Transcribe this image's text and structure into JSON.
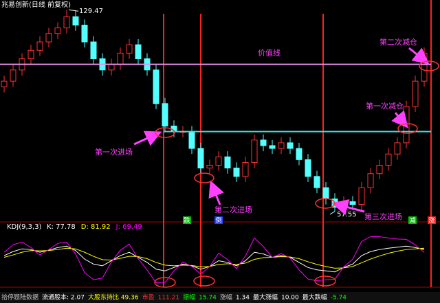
{
  "header": {
    "title": "兆易创新(日线 前复权)"
  },
  "chart_data": [
    {
      "type": "candlestick",
      "open": [
        102,
        104,
        108,
        112,
        115,
        118,
        121,
        123,
        127,
        124,
        118,
        112,
        108,
        110,
        114,
        117,
        112,
        108,
        96,
        88,
        86,
        86,
        80,
        73,
        74,
        77,
        73,
        70,
        75,
        83,
        81,
        80,
        82,
        80,
        76,
        70,
        66,
        62,
        59,
        61,
        60,
        66,
        71,
        74,
        78,
        82,
        95,
        104
      ],
      "high": [
        106,
        110,
        114,
        117,
        120,
        123,
        125,
        129.47,
        129,
        126,
        120,
        114,
        112,
        116,
        119,
        119,
        114,
        110,
        98,
        90,
        88,
        88,
        82,
        76,
        79,
        79,
        75,
        77,
        85,
        85,
        83,
        84,
        84,
        82,
        78,
        72,
        68,
        64,
        63,
        63,
        68,
        73,
        76,
        80,
        84,
        97,
        106,
        116
      ],
      "low": [
        100,
        102,
        106,
        110,
        113,
        116,
        119,
        121,
        122,
        116,
        110,
        106,
        106,
        108,
        112,
        110,
        106,
        94,
        86,
        84,
        84,
        78,
        71,
        71,
        72,
        71,
        68,
        68,
        73,
        79,
        78,
        78,
        78,
        74,
        68,
        64,
        60,
        57.55,
        58,
        58,
        58,
        64,
        69,
        72,
        76,
        80,
        93,
        102
      ],
      "close": [
        104,
        108,
        112,
        115,
        118,
        121,
        123,
        127,
        124,
        118,
        112,
        108,
        110,
        114,
        117,
        112,
        108,
        96,
        88,
        86,
        86,
        80,
        73,
        74,
        77,
        73,
        70,
        75,
        83,
        81,
        80,
        82,
        80,
        76,
        70,
        66,
        62,
        59,
        61,
        60,
        66,
        71,
        74,
        78,
        82,
        95,
        104,
        114
      ],
      "up_color": "#ff3232",
      "down_color": "#54ffff",
      "ylim": [
        55,
        131
      ],
      "max_label": 129.47,
      "min_label": 57.55,
      "reference_lines": [
        {
          "value": 110,
          "color": "#e890e8",
          "label": "价值线"
        },
        {
          "value": 86,
          "color": "#40e0e0"
        }
      ],
      "annotations": [
        "第一次进场",
        "第二次进场",
        "第三次进场",
        "第一次减仓",
        "第二次减仓"
      ],
      "tags": [
        "跌",
        "倒",
        "减",
        "涨"
      ]
    },
    {
      "type": "line",
      "title": "KDJ(9,3,3)",
      "ylim": [
        -25,
        125
      ],
      "series": [
        {
          "name": "K: 77.78",
          "color": "#ffffff",
          "values": [
            60,
            72,
            80,
            78,
            70,
            76,
            84,
            88,
            75,
            50,
            35,
            30,
            45,
            60,
            70,
            55,
            40,
            20,
            15,
            25,
            35,
            30,
            20,
            28,
            45,
            40,
            30,
            45,
            70,
            65,
            55,
            60,
            55,
            40,
            25,
            18,
            15,
            12,
            25,
            35,
            60,
            72,
            78,
            82,
            85,
            88,
            84,
            77.78
          ]
        },
        {
          "name": "D: 81.92",
          "color": "#ffff00",
          "values": [
            55,
            62,
            70,
            75,
            74,
            75,
            78,
            82,
            80,
            70,
            58,
            48,
            47,
            52,
            58,
            57,
            51,
            40,
            32,
            30,
            32,
            31,
            27,
            28,
            34,
            36,
            34,
            38,
            49,
            54,
            55,
            57,
            56,
            51,
            42,
            34,
            28,
            23,
            24,
            28,
            39,
            50,
            59,
            67,
            73,
            78,
            80,
            81.92
          ]
        },
        {
          "name": "J: 69.49",
          "color": "#ff00ff",
          "values": [
            70,
            92,
            100,
            84,
            62,
            78,
            96,
            100,
            65,
            10,
            -11,
            -6,
            41,
            76,
            94,
            51,
            18,
            -20,
            -19,
            15,
            41,
            28,
            6,
            28,
            67,
            48,
            22,
            59,
            112,
            87,
            55,
            66,
            53,
            18,
            -9,
            -14,
            -11,
            -10,
            27,
            49,
            102,
            116,
            116,
            112,
            109,
            108,
            92,
            69.49
          ]
        }
      ]
    }
  ],
  "status_bar": {
    "items": [
      "拾停题陆数据",
      "流通股本: 2.07",
      "大股东持比 49.36",
      "市盈",
      "111.21",
      "振幅",
      "15.74",
      "涨幅",
      "1.34",
      "最大涨幅",
      "10.00",
      "最大跌幅",
      "-5.74"
    ]
  }
}
